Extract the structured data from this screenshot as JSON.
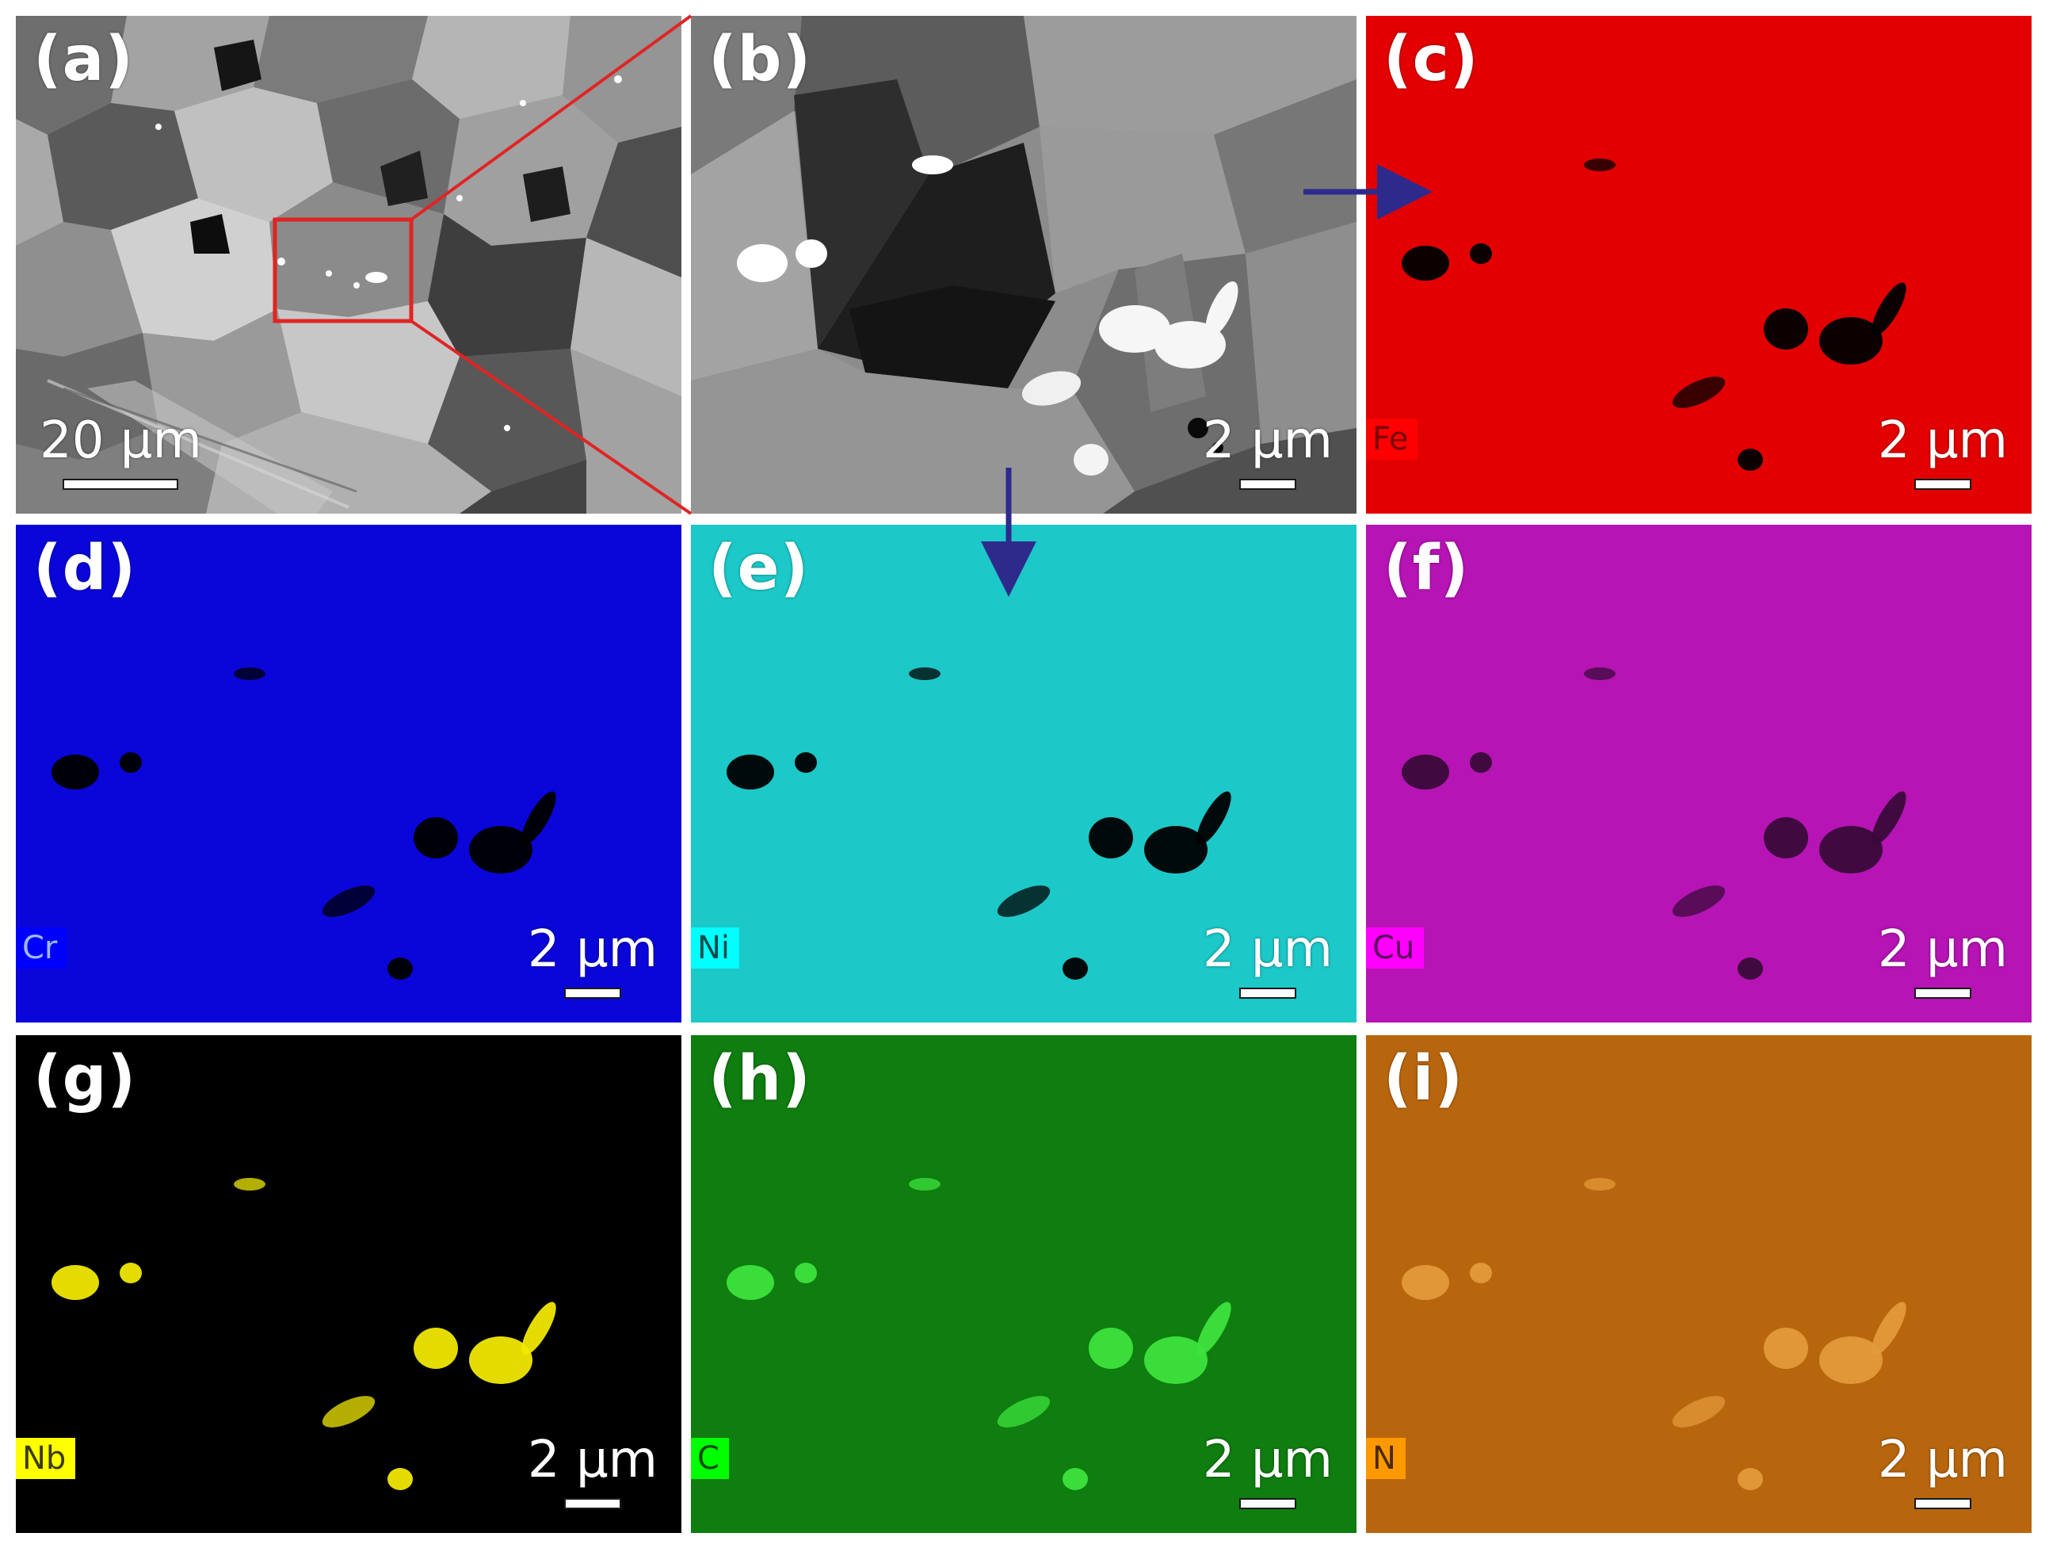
{
  "figure": {
    "panels": [
      {
        "label": "(a)",
        "kind": "sem-overview",
        "scale": "20 μm",
        "element": null
      },
      {
        "label": "(b)",
        "kind": "sem-zoom",
        "scale": "2 μm",
        "element": null
      },
      {
        "label": "(c)",
        "kind": "eds-map",
        "scale": "2 μm",
        "element": "Fe",
        "color": "#e20000",
        "particle_color": "#000000"
      },
      {
        "label": "(d)",
        "kind": "eds-map",
        "scale": "2 μm",
        "element": "Cr",
        "color": "#0a06d9",
        "particle_color": "#000000"
      },
      {
        "label": "(e)",
        "kind": "eds-map",
        "scale": "2 μm",
        "element": "Ni",
        "color": "#1cc8c8",
        "particle_color": "#000000"
      },
      {
        "label": "(f)",
        "kind": "eds-map",
        "scale": "2 μm",
        "element": "Cu",
        "color": "#b614b4",
        "particle_color": "#3a0a3a"
      },
      {
        "label": "(g)",
        "kind": "eds-map",
        "scale": "2 μm",
        "element": "Nb",
        "color": "#000000",
        "particle_color": "#f0e800"
      },
      {
        "label": "(h)",
        "kind": "eds-map",
        "scale": "2 μm",
        "element": "C",
        "color": "#0f7d0f",
        "particle_color": "#3de33d"
      },
      {
        "label": "(i)",
        "kind": "eds-map",
        "scale": "2 μm",
        "element": "N",
        "color": "#b8660e",
        "particle_color": "#e39a3a"
      }
    ],
    "tag_colors": {
      "Fe": {
        "bg": "#ff0000",
        "fg": "#7a0000"
      },
      "Cr": {
        "bg": "#0000ff",
        "fg": "#9fb8ff"
      },
      "Ni": {
        "bg": "#00ffff",
        "fg": "#0a4a4a"
      },
      "Cu": {
        "bg": "#ff00ff",
        "fg": "#5a005a"
      },
      "Nb": {
        "bg": "#ffff00",
        "fg": "#3a3a00"
      },
      "C": {
        "bg": "#00ff00",
        "fg": "#004a00"
      },
      "N": {
        "bg": "#ff9900",
        "fg": "#4a2a00"
      }
    },
    "annotation_colors": {
      "zoom_box": "#e02424",
      "arrow": "#2e2a8c"
    }
  }
}
